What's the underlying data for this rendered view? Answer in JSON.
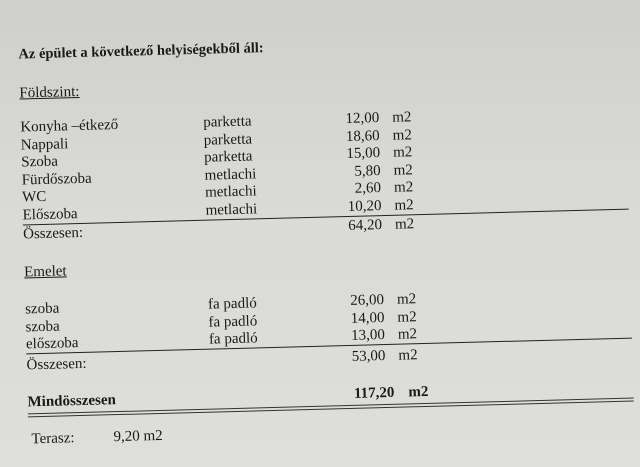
{
  "title": "Az épület  a következő helyiségekből áll:",
  "ground_floor": {
    "heading": "Földszint:",
    "rows": [
      {
        "name": "Konyha –étkező",
        "material": "parketta",
        "area": "12,00",
        "unit": "m2"
      },
      {
        "name": "Nappali",
        "material": "parketta",
        "area": "18,60",
        "unit": "m2"
      },
      {
        "name": "Szoba",
        "material": "parketta",
        "area": "15,00",
        "unit": "m2"
      },
      {
        "name": "Fürdőszoba",
        "material": "metlachi",
        "area": "5,80",
        "unit": "m2"
      },
      {
        "name": "WC",
        "material": "metlachi",
        "area": "2,60",
        "unit": "m2"
      },
      {
        "name": "Előszoba",
        "material": "metlachi",
        "area": "10,20",
        "unit": "m2"
      }
    ],
    "total_label": "Összesen:",
    "total": "64,20",
    "total_unit": "m2"
  },
  "upper_floor": {
    "heading": "Emelet",
    "rows": [
      {
        "name": "szoba",
        "material": "fa padló",
        "area": "26,00",
        "unit": "m2"
      },
      {
        "name": "szoba",
        "material": "fa padló",
        "area": "14,00",
        "unit": "m2"
      },
      {
        "name": "előszoba",
        "material": "fa padló",
        "area": "13,00",
        "unit": "m2"
      }
    ],
    "total_label": "Összesen:",
    "total": "53,00",
    "total_unit": "m2"
  },
  "grand_total": {
    "label": "Mindösszesen",
    "value": "117,20",
    "unit": "m2"
  },
  "terrace": {
    "label": "Terasz:",
    "value": "9,20 m2"
  }
}
